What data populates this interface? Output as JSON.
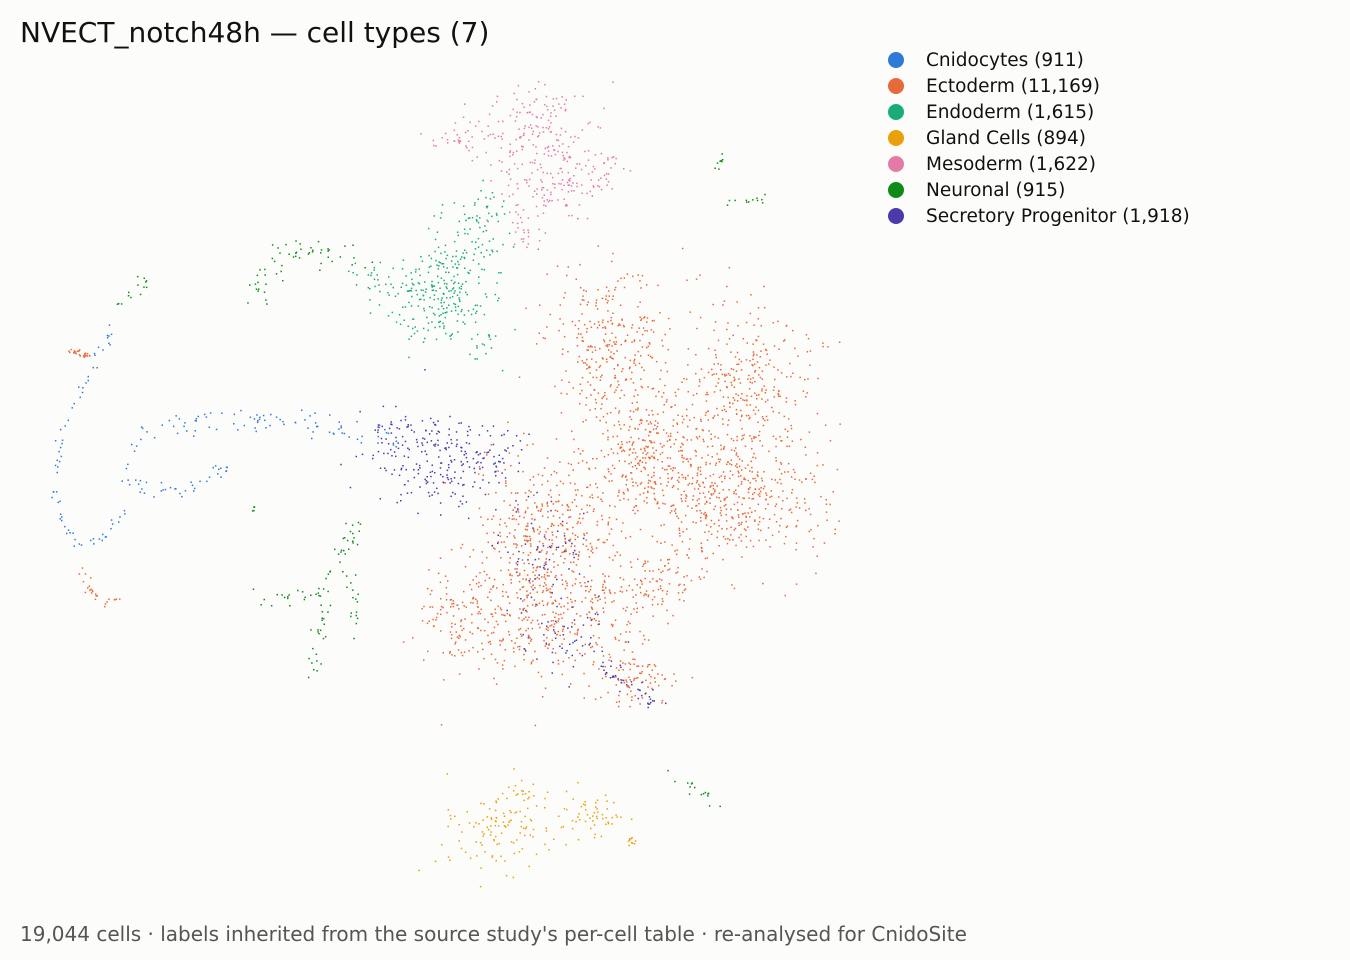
{
  "chart_data": {
    "type": "scatter",
    "title": "NVECT_notch48h — cell types (7)",
    "xlabel": "",
    "ylabel": "",
    "grid": false,
    "legend_placement": "top-right",
    "total_cells": 19044,
    "series": [
      {
        "name": "Cnidocytes",
        "label": "Cnidocytes (911)",
        "count": 911,
        "color": "#2e7bd6"
      },
      {
        "name": "Ectoderm",
        "label": "Ectoderm (11,169)",
        "count": 11169,
        "color": "#e8693a"
      },
      {
        "name": "Endoderm",
        "label": "Endoderm (1,615)",
        "count": 1615,
        "color": "#1aab7a"
      },
      {
        "name": "Gland Cells",
        "label": "Gland Cells (894)",
        "count": 894,
        "color": "#e9a00a"
      },
      {
        "name": "Mesoderm",
        "label": "Mesoderm (1,622)",
        "count": 1622,
        "color": "#e47aa6"
      },
      {
        "name": "Neuronal",
        "label": "Neuronal (915)",
        "count": 915,
        "color": "#0f8a1a"
      },
      {
        "name": "Secretory Progenitor",
        "label": "Secretory Progenitor (1,918)",
        "count": 1918,
        "color": "#4a3aab"
      }
    ]
  },
  "footer": {
    "caption": "19,044 cells · labels inherited from the source study's per-cell table · re-analysed for CnidoSite"
  }
}
